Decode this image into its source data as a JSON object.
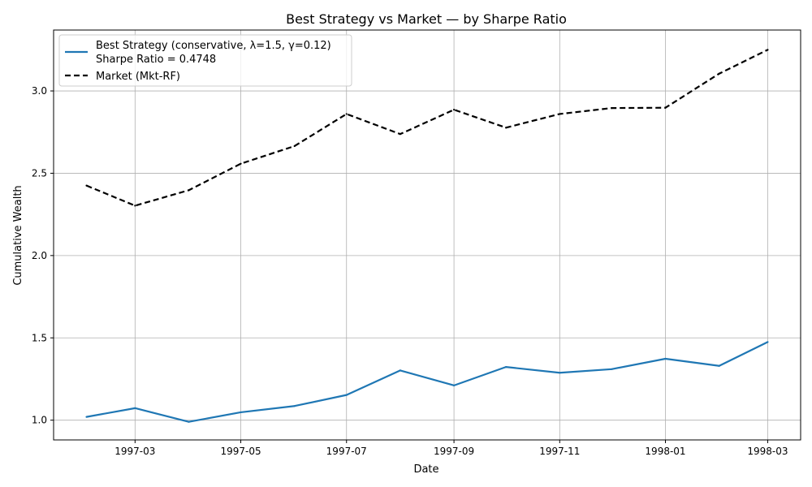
{
  "chart_data": {
    "type": "line",
    "title": "Best Strategy vs Market — by Sharpe Ratio",
    "xlabel": "Date",
    "ylabel": "Cumulative Wealth",
    "x": [
      "1997-02-01",
      "1997-03-01",
      "1997-04-01",
      "1997-05-01",
      "1997-06-01",
      "1997-07-01",
      "1997-08-01",
      "1997-09-01",
      "1997-10-01",
      "1997-11-01",
      "1997-12-01",
      "1998-01-01",
      "1998-02-01",
      "1998-03-01"
    ],
    "xlim": [
      "1997-01-13",
      "1998-03-20"
    ],
    "ylim": [
      0.88,
      3.37
    ],
    "x_ticks": [
      {
        "date": "1997-03-01",
        "label": "1997-03"
      },
      {
        "date": "1997-05-01",
        "label": "1997-05"
      },
      {
        "date": "1997-07-01",
        "label": "1997-07"
      },
      {
        "date": "1997-09-01",
        "label": "1997-09"
      },
      {
        "date": "1997-11-01",
        "label": "1997-11"
      },
      {
        "date": "1998-01-01",
        "label": "1998-01"
      },
      {
        "date": "1998-03-01",
        "label": "1998-03"
      }
    ],
    "y_ticks": [
      {
        "value": 1.0,
        "label": "1.0"
      },
      {
        "value": 1.5,
        "label": "1.5"
      },
      {
        "value": 2.0,
        "label": "2.0"
      },
      {
        "value": 2.5,
        "label": "2.5"
      },
      {
        "value": 3.0,
        "label": "3.0"
      }
    ],
    "grid": true,
    "legend_position": "top-left",
    "series": [
      {
        "name": "Best Strategy (conservative, λ=1.5, γ=0.12)",
        "legend_line2": "Sharpe Ratio = 0.4748",
        "color": "#1f77b4",
        "dash": "solid",
        "values": [
          1.02,
          1.073,
          0.99,
          1.048,
          1.086,
          1.153,
          1.302,
          1.211,
          1.323,
          1.288,
          1.31,
          1.373,
          1.33,
          1.475
        ]
      },
      {
        "name": "Market (Mkt-RF)",
        "color": "#000000",
        "dash": "dashed",
        "values": [
          2.425,
          2.303,
          2.397,
          2.558,
          2.665,
          2.86,
          2.738,
          2.886,
          2.777,
          2.86,
          2.896,
          2.898,
          3.105,
          3.25
        ]
      }
    ]
  }
}
